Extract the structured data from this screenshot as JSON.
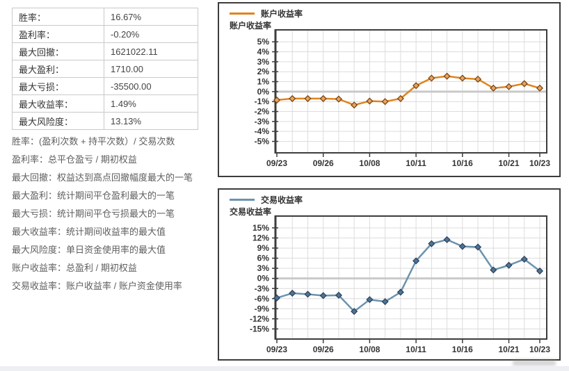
{
  "stats_table": {
    "rows": [
      {
        "label": "胜率：",
        "value": "16.67%"
      },
      {
        "label": "盈利率：",
        "value": "-0.20%"
      },
      {
        "label": "最大回撤：",
        "value": "1621022.11"
      },
      {
        "label": "最大盈利：",
        "value": "1710.00"
      },
      {
        "label": "最大亏损：",
        "value": "-35500.00"
      },
      {
        "label": "最大收益率：",
        "value": "1.49%"
      },
      {
        "label": "最大风险度：",
        "value": "13.13%"
      }
    ]
  },
  "notes": [
    "胜率：(盈利次数 + 持平次数）/ 交易次数",
    "盈利率：总平仓盈亏 / 期初权益",
    "最大回撤：权益达到高点回撤幅度最大的一笔",
    "最大盈利：统计期间平仓盈利最大的一笔",
    "最大亏损：统计期间平仓亏损最大的一笔",
    "最大收益率：统计期间收益率的最大值",
    "最大风险度：单日资金使用率的最大值",
    "账户收益率：总盈利 / 期初权益",
    "交易收益率：账户收益率 / 账户资金使用率"
  ],
  "chart_data": [
    {
      "type": "line",
      "legend": "账户收益率",
      "ylabel": "账户收益率",
      "x_tick_labels": [
        "09/23",
        "09/26",
        "10/08",
        "10/11",
        "10/16",
        "10/21",
        "10/23"
      ],
      "x_tick_indices": [
        0,
        3,
        6,
        9,
        12,
        15,
        17
      ],
      "y_ticks": [
        5,
        4,
        3,
        2,
        1,
        0,
        -1,
        -2,
        -3,
        -4,
        -5
      ],
      "y_tick_labels": [
        "5%",
        "4%",
        "3%",
        "2%",
        "1%",
        "0%",
        "-1%",
        "-2%",
        "-3%",
        "-4%",
        "-5%"
      ],
      "ylim": [
        -6.15,
        6.2
      ],
      "values": [
        -0.85,
        -0.7,
        -0.7,
        -0.7,
        -0.75,
        -1.35,
        -0.95,
        -1.0,
        -0.7,
        0.6,
        1.35,
        1.55,
        1.35,
        1.25,
        0.35,
        0.5,
        0.8,
        0.35
      ],
      "grid": true,
      "legend_position": "top-left",
      "line_color": "#df841f",
      "marker_fill": "#e9a25b",
      "marker_stroke": "#714012"
    },
    {
      "type": "line",
      "legend": "交易收益率",
      "ylabel": "交易收益率",
      "x_tick_labels": [
        "09/23",
        "09/26",
        "10/08",
        "10/11",
        "10/16",
        "10/21",
        "10/23"
      ],
      "x_tick_indices": [
        0,
        3,
        6,
        9,
        12,
        15,
        17
      ],
      "y_ticks": [
        15,
        12,
        9,
        6,
        3,
        0,
        -3,
        -6,
        -9,
        -12,
        -15
      ],
      "y_tick_labels": [
        "15%",
        "12%",
        "9%",
        "6%",
        "3%",
        "0%",
        "-3%",
        "-6%",
        "-9%",
        "-12%",
        "-15%"
      ],
      "ylim": [
        -18.0,
        18.5
      ],
      "values": [
        -5.8,
        -4.4,
        -4.7,
        -5.1,
        -5.0,
        -9.8,
        -6.3,
        -6.9,
        -4.1,
        5.2,
        10.3,
        11.5,
        9.5,
        9.3,
        2.5,
        3.9,
        5.7,
        2.2
      ],
      "grid": true,
      "legend_position": "top-left",
      "line_color": "#6b93ae",
      "marker_fill": "#4e7396",
      "marker_stroke": "#2b4158"
    }
  ]
}
